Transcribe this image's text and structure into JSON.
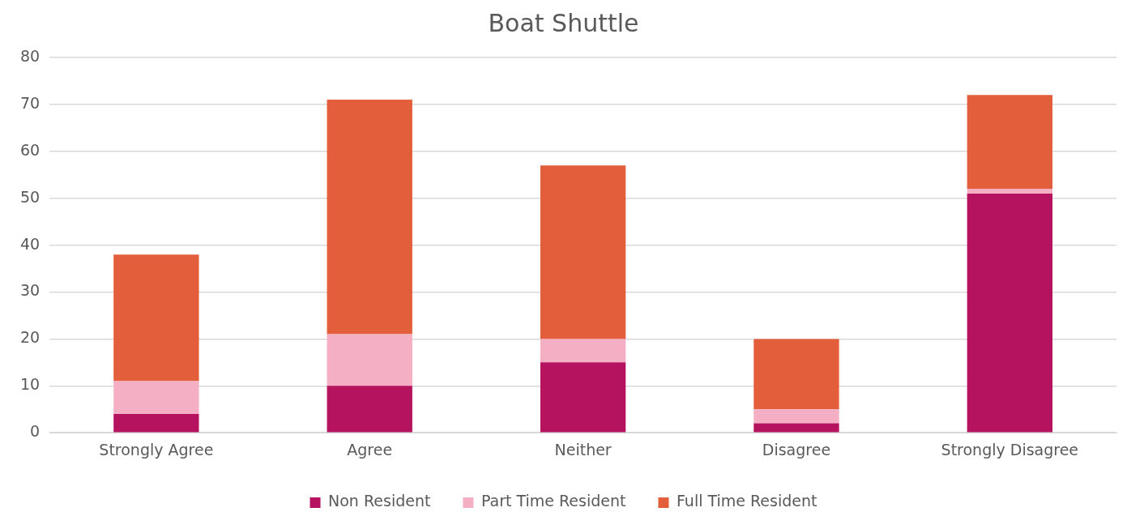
{
  "chart_data": {
    "type": "bar",
    "title": "Boat Shuttle",
    "categories": [
      "Strongly Agree",
      "Agree",
      "Neither",
      "Disagree",
      "Strongly Disagree"
    ],
    "stacked": true,
    "series": [
      {
        "name": "Non Resident",
        "color": "#b5135f",
        "values": [
          4,
          10,
          15,
          2,
          51
        ]
      },
      {
        "name": "Part Time Resident",
        "color": "#f4afc4",
        "values": [
          7,
          11,
          5,
          3,
          1
        ]
      },
      {
        "name": "Full Time Resident",
        "color": "#e35f3c",
        "values": [
          27,
          50,
          37,
          15,
          20
        ]
      }
    ],
    "ylim": [
      0,
      80
    ],
    "yticks": [
      0,
      10,
      20,
      30,
      40,
      50,
      60,
      70,
      80
    ],
    "grid": "y",
    "legend": "bottom"
  }
}
